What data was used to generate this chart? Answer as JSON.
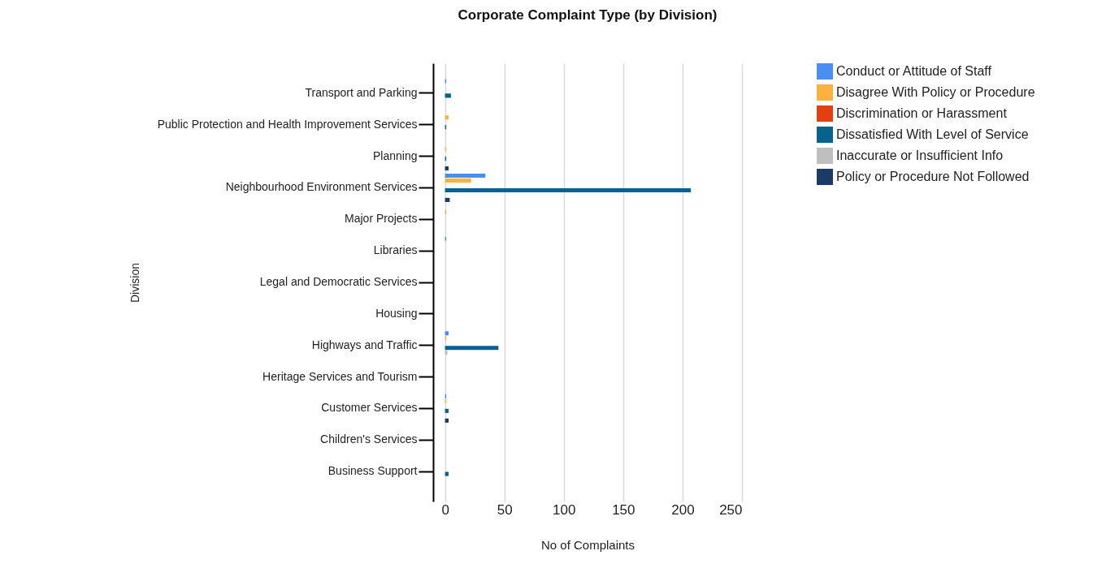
{
  "chart_data": {
    "type": "bar",
    "orientation": "horizontal",
    "title": "Corporate Complaint Type (by Division)",
    "xlabel": "No of Complaints",
    "ylabel": "Division",
    "categories": [
      "Transport and Parking",
      "Public Protection and Health Improvement Services",
      "Planning",
      "Neighbourhood Environment Services",
      "Major Projects",
      "Libraries",
      "Legal and Democratic Services",
      "Housing",
      "Highways and Traffic",
      "Heritage Services and Tourism",
      "Customer Services",
      "Children's Services",
      "Business Support"
    ],
    "series": [
      {
        "name": "Conduct or Attitude of Staff",
        "color": "#4a8ff0",
        "values": [
          1,
          0,
          0,
          34,
          0,
          1,
          0,
          0,
          3,
          0,
          1,
          0,
          0
        ]
      },
      {
        "name": "Disagree With Policy or Procedure",
        "color": "#fbb040",
        "values": [
          0,
          3,
          1,
          22,
          1,
          0,
          0,
          0,
          1,
          0,
          1,
          0,
          0
        ]
      },
      {
        "name": "Discrimination or Harassment",
        "color": "#e2400f",
        "values": [
          0,
          0,
          0,
          0,
          0,
          0,
          0,
          0,
          0,
          0,
          0,
          0,
          0
        ]
      },
      {
        "name": "Dissatisfied With Level of Service",
        "color": "#08628e",
        "values": [
          5,
          1,
          1,
          207,
          0,
          0,
          0,
          0,
          45,
          0,
          3,
          0,
          3
        ]
      },
      {
        "name": "Inaccurate or Insufficient Info",
        "color": "#bfbfbf",
        "values": [
          0,
          0,
          0,
          null,
          0,
          0,
          0,
          0,
          2,
          0,
          null,
          0,
          0
        ]
      },
      {
        "name": "Policy or Procedure Not Followed",
        "color": "#1b3a66",
        "values": [
          0,
          0,
          3,
          4,
          0,
          0,
          0,
          0,
          0,
          0,
          3,
          0,
          0
        ]
      }
    ],
    "xlim": [
      -10,
      250
    ],
    "xticks": [
      0,
      50,
      100,
      150,
      200,
      250
    ],
    "grid": "x",
    "legend": "right"
  }
}
